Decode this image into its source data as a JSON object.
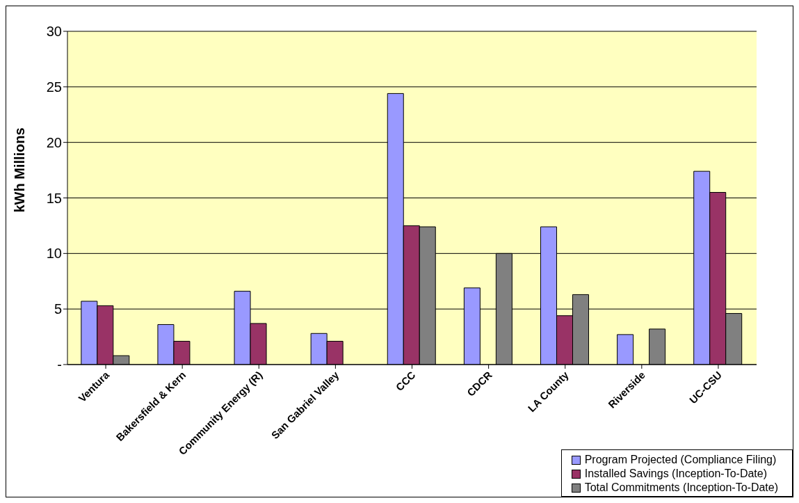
{
  "chart_data": {
    "type": "bar",
    "ylabel": "kWh Millions",
    "categories": [
      "Ventura",
      "Bakersfield & Kern",
      "Community Energy  (R)",
      "San Gabriel Valley",
      "CCC",
      "CDCR",
      "LA County",
      "Riverside",
      "UC-CSU"
    ],
    "series": [
      {
        "name": "Program Projected (Compliance Filing)",
        "color": "#9999ff",
        "values": [
          5.7,
          3.6,
          6.6,
          2.8,
          24.4,
          6.9,
          12.4,
          2.7,
          17.4
        ]
      },
      {
        "name": "Installed Savings (Inception-To-Date)",
        "color": "#993366",
        "values": [
          5.3,
          2.1,
          3.7,
          2.1,
          12.5,
          null,
          4.4,
          null,
          15.5
        ]
      },
      {
        "name": "Total Commitments (Inception-To-Date)",
        "color": "#808080",
        "values": [
          0.8,
          null,
          null,
          null,
          12.4,
          10.0,
          6.3,
          3.2,
          4.6
        ]
      }
    ],
    "ylim": [
      0,
      30
    ],
    "yticks": [
      {
        "value": 0,
        "label": "-"
      },
      5,
      10,
      15,
      20,
      25,
      30
    ],
    "grid": "y",
    "legend": "bottom right"
  }
}
